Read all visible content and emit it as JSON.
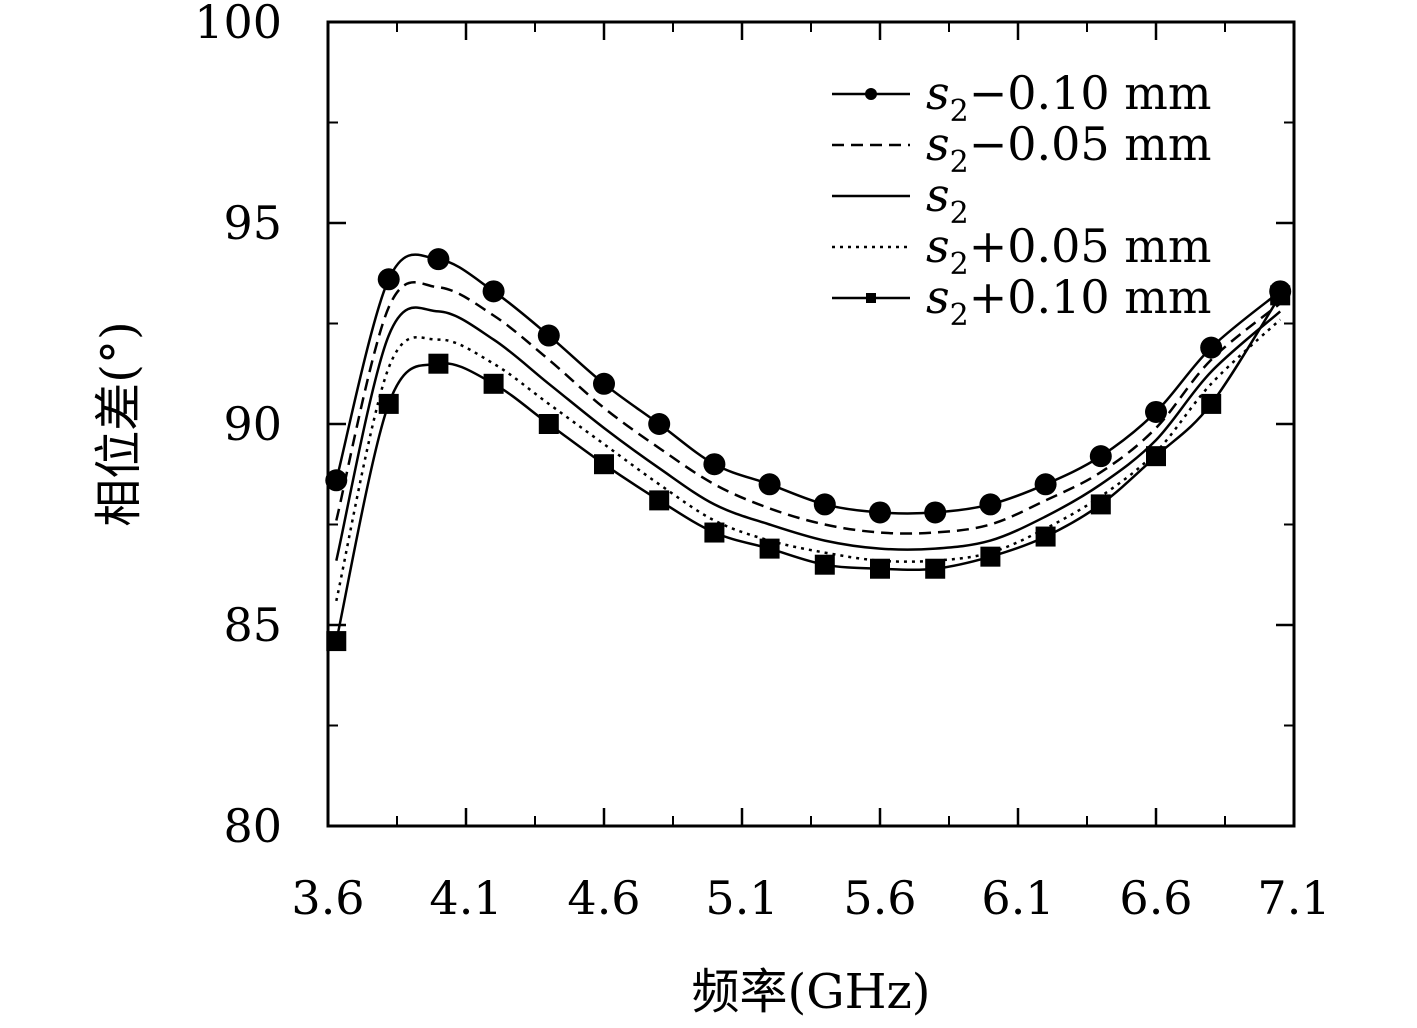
{
  "chart_data": {
    "type": "line",
    "xlabel": "频率(GHz)",
    "ylabel": "相位差(°)",
    "xlim": [
      3.6,
      7.1
    ],
    "ylim": [
      80,
      100
    ],
    "xticks": [
      "3.6",
      "4.1",
      "4.6",
      "5.1",
      "5.6",
      "6.1",
      "6.6",
      "7.1"
    ],
    "yticks": [
      "80",
      "85",
      "90",
      "95",
      "100"
    ],
    "grid": false,
    "legend_position": "top-right",
    "series": [
      {
        "name": "s2−0.10 mm",
        "legend_var": "s",
        "legend_sub": "2",
        "legend_rest": "−0.10 mm",
        "line_style": "solid",
        "marker": "circle",
        "x": [
          3.63,
          3.82,
          4.0,
          4.2,
          4.4,
          4.6,
          4.8,
          5.0,
          5.2,
          5.4,
          5.6,
          5.8,
          6.0,
          6.2,
          6.4,
          6.6,
          6.8,
          7.05
        ],
        "y": [
          88.6,
          93.6,
          94.1,
          93.3,
          92.2,
          91.0,
          90.0,
          89.0,
          88.5,
          88.0,
          87.8,
          87.8,
          88.0,
          88.5,
          89.2,
          90.3,
          91.9,
          93.3
        ]
      },
      {
        "name": "s2−0.05 mm",
        "legend_var": "s",
        "legend_sub": "2",
        "legend_rest": "−0.05 mm",
        "line_style": "dashed",
        "marker": "none",
        "x": [
          3.63,
          3.82,
          4.0,
          4.2,
          4.4,
          4.6,
          4.8,
          5.0,
          5.2,
          5.4,
          5.6,
          5.8,
          6.0,
          6.2,
          6.4,
          6.6,
          6.8,
          7.05
        ],
        "y": [
          87.6,
          92.9,
          93.4,
          92.7,
          91.6,
          90.4,
          89.4,
          88.5,
          87.9,
          87.5,
          87.3,
          87.3,
          87.5,
          88.1,
          88.8,
          89.9,
          91.6,
          93.0
        ]
      },
      {
        "name": "s2",
        "legend_var": "s",
        "legend_sub": "2",
        "legend_rest": "",
        "line_style": "solid",
        "marker": "none",
        "x": [
          3.63,
          3.82,
          4.0,
          4.2,
          4.4,
          4.6,
          4.8,
          5.0,
          5.2,
          5.4,
          5.6,
          5.8,
          6.0,
          6.2,
          6.4,
          6.6,
          6.8,
          7.05
        ],
        "y": [
          86.6,
          92.2,
          92.8,
          92.1,
          91.0,
          89.9,
          88.9,
          88.0,
          87.5,
          87.1,
          86.9,
          86.9,
          87.1,
          87.7,
          88.5,
          89.6,
          91.3,
          92.8
        ]
      },
      {
        "name": "s2+0.05 mm",
        "legend_var": "s",
        "legend_sub": "2",
        "legend_rest": "+0.05 mm",
        "line_style": "dotted",
        "marker": "none",
        "x": [
          3.63,
          3.82,
          4.0,
          4.2,
          4.4,
          4.6,
          4.8,
          5.0,
          5.2,
          5.4,
          5.6,
          5.8,
          6.0,
          6.2,
          6.4,
          6.6,
          6.8,
          7.05
        ],
        "y": [
          85.6,
          91.4,
          92.1,
          91.5,
          90.5,
          89.5,
          88.5,
          87.6,
          87.1,
          86.8,
          86.6,
          86.6,
          86.8,
          87.4,
          88.2,
          89.3,
          91.0,
          92.6
        ]
      },
      {
        "name": "s2+0.10 mm",
        "legend_var": "s",
        "legend_sub": "2",
        "legend_rest": "+0.10 mm",
        "line_style": "solid",
        "marker": "square",
        "x": [
          3.63,
          3.82,
          4.0,
          4.2,
          4.4,
          4.6,
          4.8,
          5.0,
          5.2,
          5.4,
          5.6,
          5.8,
          6.0,
          6.2,
          6.4,
          6.6,
          6.8,
          7.05
        ],
        "y": [
          84.6,
          90.5,
          91.5,
          91.0,
          90.0,
          89.0,
          88.1,
          87.3,
          86.9,
          86.5,
          86.4,
          86.4,
          86.7,
          87.2,
          88.0,
          89.2,
          90.5,
          93.2
        ]
      }
    ]
  }
}
